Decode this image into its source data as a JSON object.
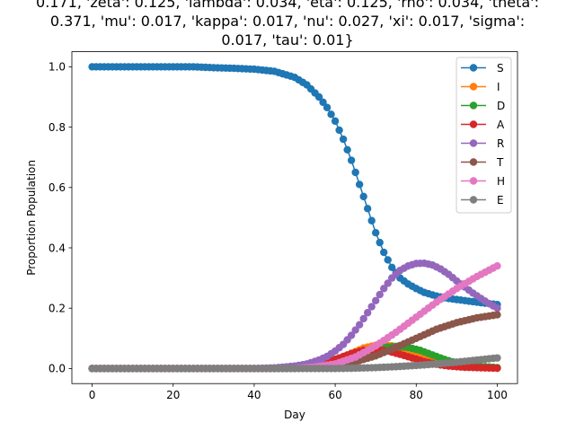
{
  "chart_data": {
    "type": "line",
    "title_lines": [
      "0.171, 'zeta': 0.125, 'lambda': 0.034, 'eta': 0.125, 'rho': 0.034, 'theta':",
      "0.371, 'mu': 0.017, 'kappa': 0.017, 'nu': 0.027, 'xi': 0.017, 'sigma':",
      "0.017, 'tau': 0.01}"
    ],
    "xlabel": "Day",
    "ylabel": "Proportion Population",
    "xlim": [
      -5,
      105
    ],
    "ylim": [
      -0.05,
      1.05
    ],
    "xticks": [
      0,
      20,
      40,
      60,
      80,
      100
    ],
    "xtick_labels": [
      "0",
      "20",
      "40",
      "60",
      "80",
      "100"
    ],
    "yticks": [
      0.0,
      0.2,
      0.4,
      0.6,
      0.8,
      1.0
    ],
    "ytick_labels": [
      "0.0",
      "0.2",
      "0.4",
      "0.6",
      "0.8",
      "1.0"
    ],
    "grid": false,
    "legend_position": "top-right",
    "x_start": 0,
    "x_end": 100,
    "series": [
      {
        "name": "S",
        "color": "#1f77b4",
        "anchors": [
          [
            0,
            1.0
          ],
          [
            25,
            1.0
          ],
          [
            30,
            0.997
          ],
          [
            35,
            0.995
          ],
          [
            40,
            0.992
          ],
          [
            45,
            0.985
          ],
          [
            50,
            0.965
          ],
          [
            53,
            0.94
          ],
          [
            56,
            0.9
          ],
          [
            58,
            0.865
          ],
          [
            60,
            0.82
          ],
          [
            62,
            0.76
          ],
          [
            64,
            0.69
          ],
          [
            66,
            0.61
          ],
          [
            68,
            0.53
          ],
          [
            70,
            0.45
          ],
          [
            72,
            0.385
          ],
          [
            74,
            0.335
          ],
          [
            76,
            0.3
          ],
          [
            78,
            0.28
          ],
          [
            80,
            0.265
          ],
          [
            82,
            0.252
          ],
          [
            85,
            0.24
          ],
          [
            88,
            0.232
          ],
          [
            92,
            0.225
          ],
          [
            96,
            0.218
          ],
          [
            100,
            0.212
          ]
        ]
      },
      {
        "name": "I",
        "color": "#ff7f0e",
        "anchors": [
          [
            0,
            0
          ],
          [
            45,
            0
          ],
          [
            50,
            0.004
          ],
          [
            55,
            0.01
          ],
          [
            58,
            0.018
          ],
          [
            61,
            0.03
          ],
          [
            64,
            0.05
          ],
          [
            67,
            0.068
          ],
          [
            70,
            0.077
          ],
          [
            72,
            0.078
          ],
          [
            74,
            0.075
          ],
          [
            77,
            0.063
          ],
          [
            80,
            0.045
          ],
          [
            83,
            0.028
          ],
          [
            86,
            0.016
          ],
          [
            90,
            0.008
          ],
          [
            95,
            0.003
          ],
          [
            100,
            0.001
          ]
        ]
      },
      {
        "name": "D",
        "color": "#2ca02c",
        "anchors": [
          [
            0,
            0
          ],
          [
            48,
            0
          ],
          [
            55,
            0.006
          ],
          [
            60,
            0.02
          ],
          [
            64,
            0.04
          ],
          [
            68,
            0.058
          ],
          [
            72,
            0.07
          ],
          [
            75,
            0.073
          ],
          [
            78,
            0.07
          ],
          [
            81,
            0.06
          ],
          [
            84,
            0.045
          ],
          [
            87,
            0.03
          ],
          [
            90,
            0.018
          ],
          [
            95,
            0.008
          ],
          [
            100,
            0.003
          ]
        ]
      },
      {
        "name": "A",
        "color": "#d62728",
        "anchors": [
          [
            0,
            0
          ],
          [
            45,
            0
          ],
          [
            50,
            0.004
          ],
          [
            55,
            0.012
          ],
          [
            58,
            0.022
          ],
          [
            61,
            0.035
          ],
          [
            64,
            0.05
          ],
          [
            67,
            0.06
          ],
          [
            70,
            0.062
          ],
          [
            73,
            0.058
          ],
          [
            76,
            0.047
          ],
          [
            79,
            0.035
          ],
          [
            82,
            0.023
          ],
          [
            85,
            0.014
          ],
          [
            88,
            0.008
          ],
          [
            92,
            0.004
          ],
          [
            100,
            0.001
          ]
        ]
      },
      {
        "name": "R",
        "color": "#9467bd",
        "anchors": [
          [
            0,
            0
          ],
          [
            40,
            0
          ],
          [
            45,
            0.002
          ],
          [
            50,
            0.008
          ],
          [
            53,
            0.015
          ],
          [
            56,
            0.028
          ],
          [
            58,
            0.04
          ],
          [
            60,
            0.058
          ],
          [
            62,
            0.08
          ],
          [
            64,
            0.11
          ],
          [
            66,
            0.145
          ],
          [
            68,
            0.185
          ],
          [
            70,
            0.225
          ],
          [
            72,
            0.265
          ],
          [
            74,
            0.3
          ],
          [
            76,
            0.325
          ],
          [
            78,
            0.34
          ],
          [
            80,
            0.348
          ],
          [
            82,
            0.349
          ],
          [
            84,
            0.343
          ],
          [
            86,
            0.33
          ],
          [
            88,
            0.312
          ],
          [
            90,
            0.29
          ],
          [
            92,
            0.27
          ],
          [
            94,
            0.25
          ],
          [
            96,
            0.232
          ],
          [
            98,
            0.215
          ],
          [
            100,
            0.2
          ]
        ]
      },
      {
        "name": "T",
        "color": "#8c564b",
        "anchors": [
          [
            0,
            0
          ],
          [
            50,
            0
          ],
          [
            55,
            0.003
          ],
          [
            60,
            0.01
          ],
          [
            65,
            0.022
          ],
          [
            70,
            0.042
          ],
          [
            75,
            0.07
          ],
          [
            80,
            0.1
          ],
          [
            85,
            0.13
          ],
          [
            90,
            0.152
          ],
          [
            95,
            0.168
          ],
          [
            100,
            0.178
          ]
        ]
      },
      {
        "name": "H",
        "color": "#e377c2",
        "anchors": [
          [
            0,
            0
          ],
          [
            50,
            0
          ],
          [
            55,
            0.005
          ],
          [
            60,
            0.015
          ],
          [
            65,
            0.038
          ],
          [
            70,
            0.075
          ],
          [
            75,
            0.12
          ],
          [
            80,
            0.17
          ],
          [
            85,
            0.22
          ],
          [
            90,
            0.265
          ],
          [
            95,
            0.305
          ],
          [
            100,
            0.34
          ]
        ]
      },
      {
        "name": "E",
        "color": "#7f7f7f",
        "anchors": [
          [
            0,
            0
          ],
          [
            60,
            0
          ],
          [
            65,
            0.001
          ],
          [
            70,
            0.003
          ],
          [
            75,
            0.006
          ],
          [
            80,
            0.01
          ],
          [
            85,
            0.015
          ],
          [
            90,
            0.021
          ],
          [
            95,
            0.028
          ],
          [
            100,
            0.035
          ]
        ]
      }
    ]
  }
}
